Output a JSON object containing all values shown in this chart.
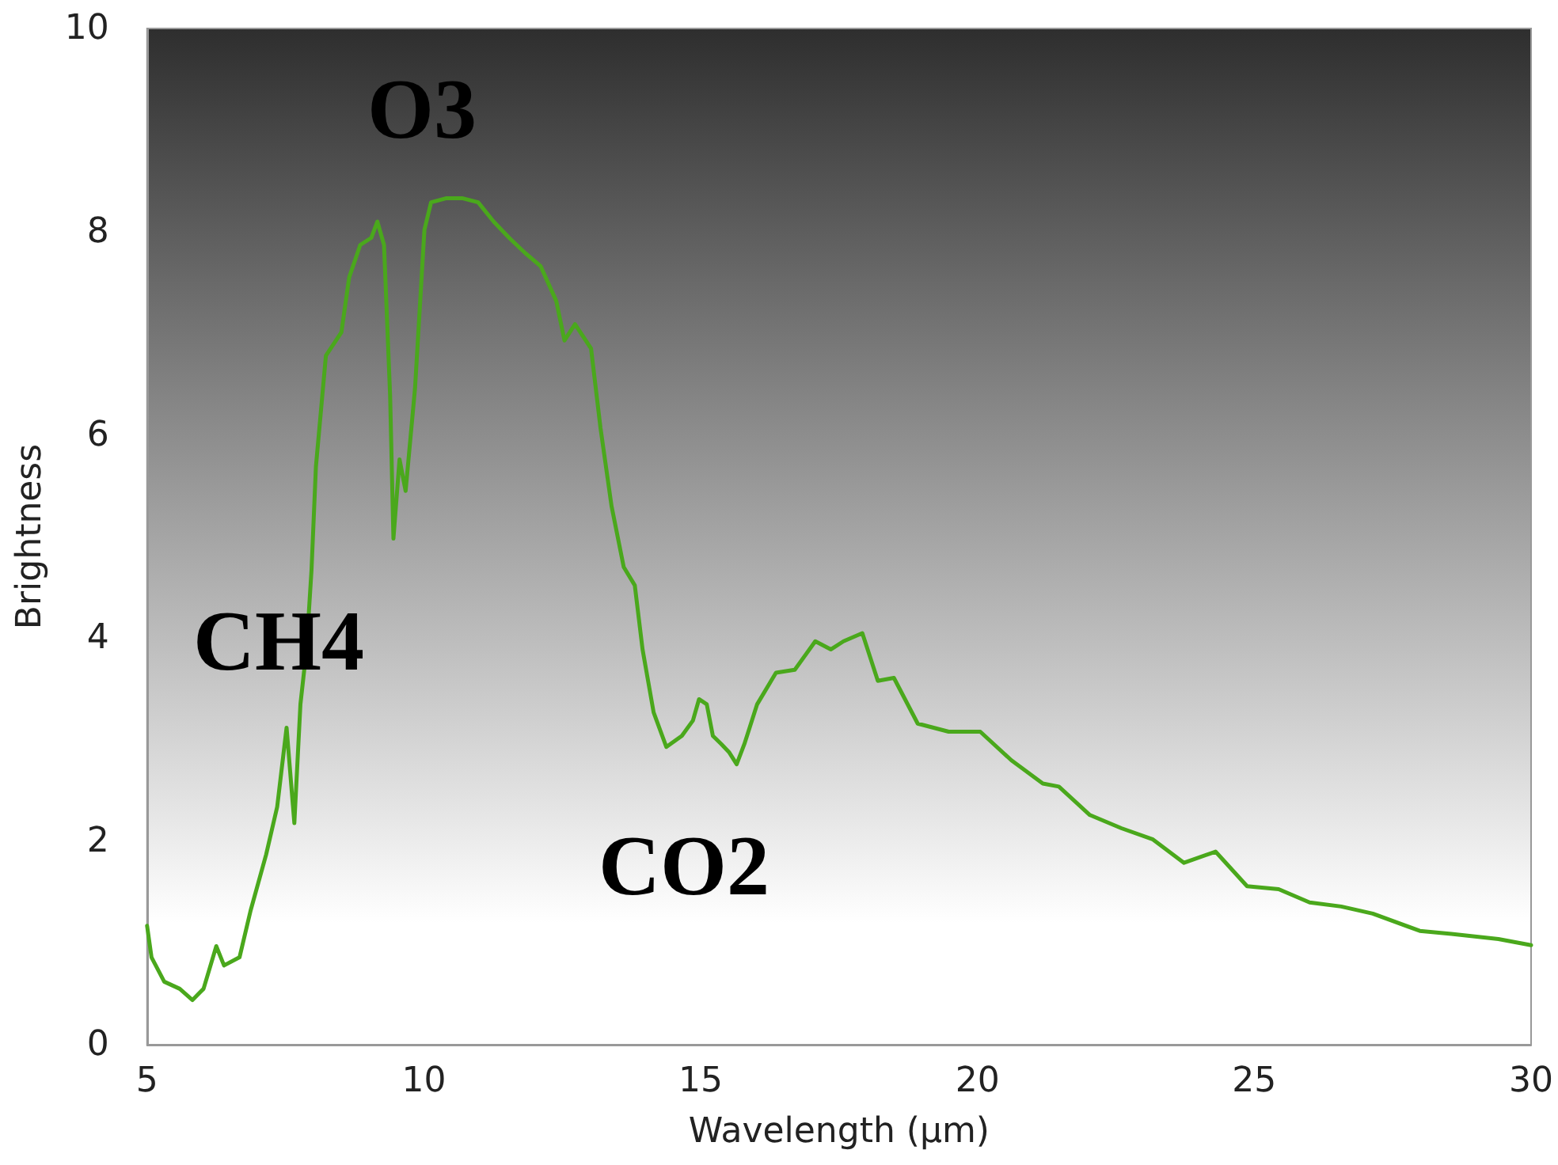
{
  "chart_data": {
    "type": "line",
    "xlabel": "Wavelength (μm)",
    "ylabel": "Brightness",
    "x": [
      5.0,
      5.08,
      5.31,
      5.59,
      5.82,
      6.02,
      6.25,
      6.39,
      6.67,
      6.87,
      7.15,
      7.35,
      7.52,
      7.66,
      7.77,
      7.88,
      7.97,
      8.05,
      8.23,
      8.51,
      8.65,
      8.85,
      9.05,
      9.16,
      9.28,
      9.39,
      9.45,
      9.56,
      9.67,
      9.84,
      10.01,
      10.13,
      10.41,
      10.69,
      10.98,
      11.26,
      11.54,
      11.83,
      12.11,
      12.39,
      12.54,
      12.73,
      13.02,
      13.19,
      13.39,
      13.61,
      13.81,
      13.95,
      14.15,
      14.38,
      14.66,
      14.86,
      14.97,
      15.11,
      15.22,
      15.37,
      15.51,
      15.65,
      15.79,
      16.02,
      16.36,
      16.7,
      17.07,
      17.35,
      17.58,
      17.92,
      18.2,
      18.49,
      18.92,
      19.48,
      20.05,
      20.61,
      21.18,
      21.47,
      22.03,
      22.6,
      23.17,
      23.73,
      24.3,
      24.87,
      25.44,
      26.0,
      26.57,
      27.14,
      27.99,
      28.56,
      29.41,
      30.0
    ],
    "series": [
      {
        "color": "#4aa81c",
        "values": [
          1.17,
          0.86,
          0.62,
          0.55,
          0.44,
          0.55,
          0.97,
          0.78,
          0.86,
          1.32,
          1.87,
          2.34,
          3.12,
          2.18,
          3.35,
          3.89,
          4.67,
          5.69,
          6.78,
          7.01,
          7.55,
          7.87,
          7.94,
          8.1,
          7.87,
          6.39,
          4.98,
          5.76,
          5.45,
          6.46,
          8.02,
          8.29,
          8.33,
          8.33,
          8.29,
          8.1,
          7.94,
          7.79,
          7.66,
          7.32,
          6.93,
          7.09,
          6.85,
          6.07,
          5.3,
          4.7,
          4.52,
          3.89,
          3.27,
          2.93,
          3.04,
          3.19,
          3.4,
          3.35,
          3.04,
          2.96,
          2.88,
          2.76,
          2.96,
          3.35,
          3.66,
          3.69,
          3.97,
          3.89,
          3.97,
          4.05,
          3.58,
          3.61,
          3.16,
          3.08,
          3.08,
          2.8,
          2.57,
          2.54,
          2.26,
          2.13,
          2.02,
          1.79,
          1.9,
          1.56,
          1.53,
          1.4,
          1.36,
          1.29,
          1.12,
          1.09,
          1.04,
          0.98
        ]
      }
    ],
    "xlim": [
      5,
      30
    ],
    "xticks": [
      5,
      10,
      15,
      20,
      25,
      30
    ],
    "ylim": [
      0,
      10
    ],
    "yticks": [
      0,
      2,
      4,
      6,
      8,
      10
    ],
    "grid": false,
    "marker": "none",
    "line_style": "solid",
    "annotations": [
      "O3",
      "CH4",
      "CO2"
    ]
  }
}
